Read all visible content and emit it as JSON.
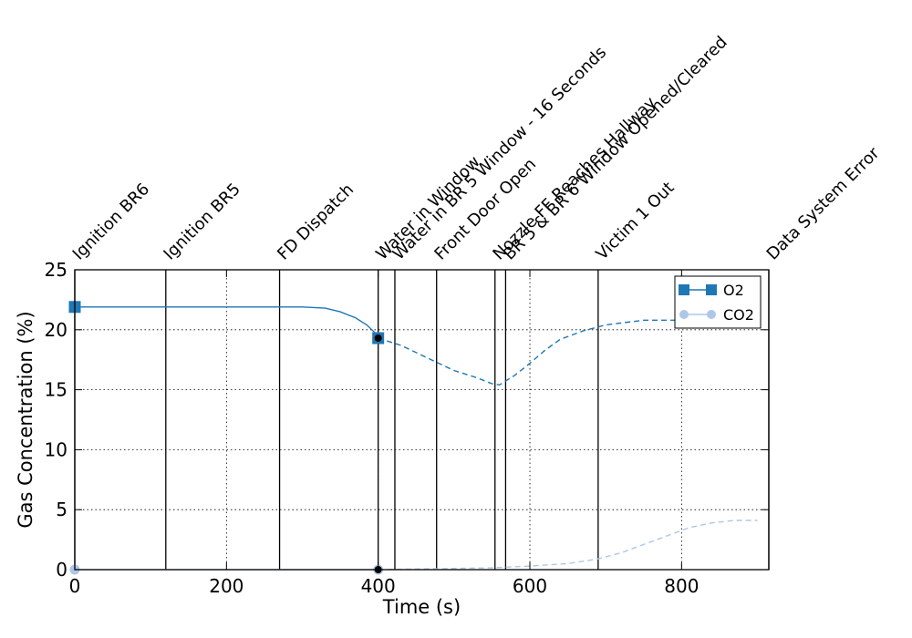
{
  "chart_data": {
    "type": "line",
    "xlabel": "Time (s)",
    "ylabel": "Gas Concentration (%)",
    "xlim": [
      0,
      915
    ],
    "ylim": [
      0,
      25
    ],
    "xticks": [
      0,
      200,
      400,
      600,
      800
    ],
    "yticks": [
      0,
      5,
      10,
      15,
      20,
      25
    ],
    "grid": true,
    "legend_position": "top-right",
    "events": [
      {
        "label": "Ignition BR6",
        "x": 0
      },
      {
        "label": "Ignition BR5",
        "x": 120
      },
      {
        "label": "FD Dispatch",
        "x": 270
      },
      {
        "label": "Water in Window",
        "x": 400
      },
      {
        "label": "Water in BR 5 Window - 16 Seconds",
        "x": 422
      },
      {
        "label": "Front Door Open",
        "x": 477
      },
      {
        "label": "Nozzle FF Reaches Hallway",
        "x": 554
      },
      {
        "label": "BR 5 & BR 6 Window Opened/Cleared",
        "x": 568
      },
      {
        "label": "Victim 1 Out",
        "x": 690
      },
      {
        "label": "Data System Error",
        "x": 915
      }
    ],
    "series": [
      {
        "name": "O2",
        "color": "#1f77b4",
        "marker": "square",
        "solid": [
          [
            0,
            21.9
          ],
          [
            100,
            21.9
          ],
          [
            200,
            21.9
          ],
          [
            300,
            21.9
          ],
          [
            330,
            21.8
          ],
          [
            350,
            21.5
          ],
          [
            370,
            21.0
          ],
          [
            385,
            20.4
          ],
          [
            395,
            19.8
          ],
          [
            400,
            19.3
          ]
        ],
        "dashed": [
          [
            400,
            19.3
          ],
          [
            430,
            18.7
          ],
          [
            470,
            17.5
          ],
          [
            500,
            16.6
          ],
          [
            530,
            16.0
          ],
          [
            550,
            15.5
          ],
          [
            560,
            15.4
          ],
          [
            580,
            16.2
          ],
          [
            600,
            17.2
          ],
          [
            620,
            18.3
          ],
          [
            640,
            19.2
          ],
          [
            670,
            19.9
          ],
          [
            700,
            20.4
          ],
          [
            750,
            20.8
          ],
          [
            800,
            20.8
          ],
          [
            850,
            20.8
          ],
          [
            890,
            20.7
          ]
        ]
      },
      {
        "name": "CO2",
        "color": "#aec7e8",
        "marker": "circle",
        "solid": [
          [
            0,
            0.0
          ],
          [
            400,
            0.0
          ]
        ],
        "dashed": [
          [
            400,
            0.0
          ],
          [
            450,
            0.05
          ],
          [
            500,
            0.1
          ],
          [
            550,
            0.15
          ],
          [
            600,
            0.3
          ],
          [
            650,
            0.5
          ],
          [
            690,
            0.9
          ],
          [
            720,
            1.4
          ],
          [
            750,
            2.1
          ],
          [
            780,
            2.8
          ],
          [
            810,
            3.5
          ],
          [
            840,
            3.9
          ],
          [
            870,
            4.1
          ],
          [
            900,
            4.1
          ]
        ]
      }
    ],
    "markers": [
      {
        "series": "O2",
        "x": 0,
        "y": 21.9
      },
      {
        "series": "O2",
        "x": 400,
        "y": 19.3
      },
      {
        "series": "CO2",
        "x": 0,
        "y": 0.0
      },
      {
        "series": "CO2",
        "x": 400,
        "y": 0.0
      }
    ]
  }
}
